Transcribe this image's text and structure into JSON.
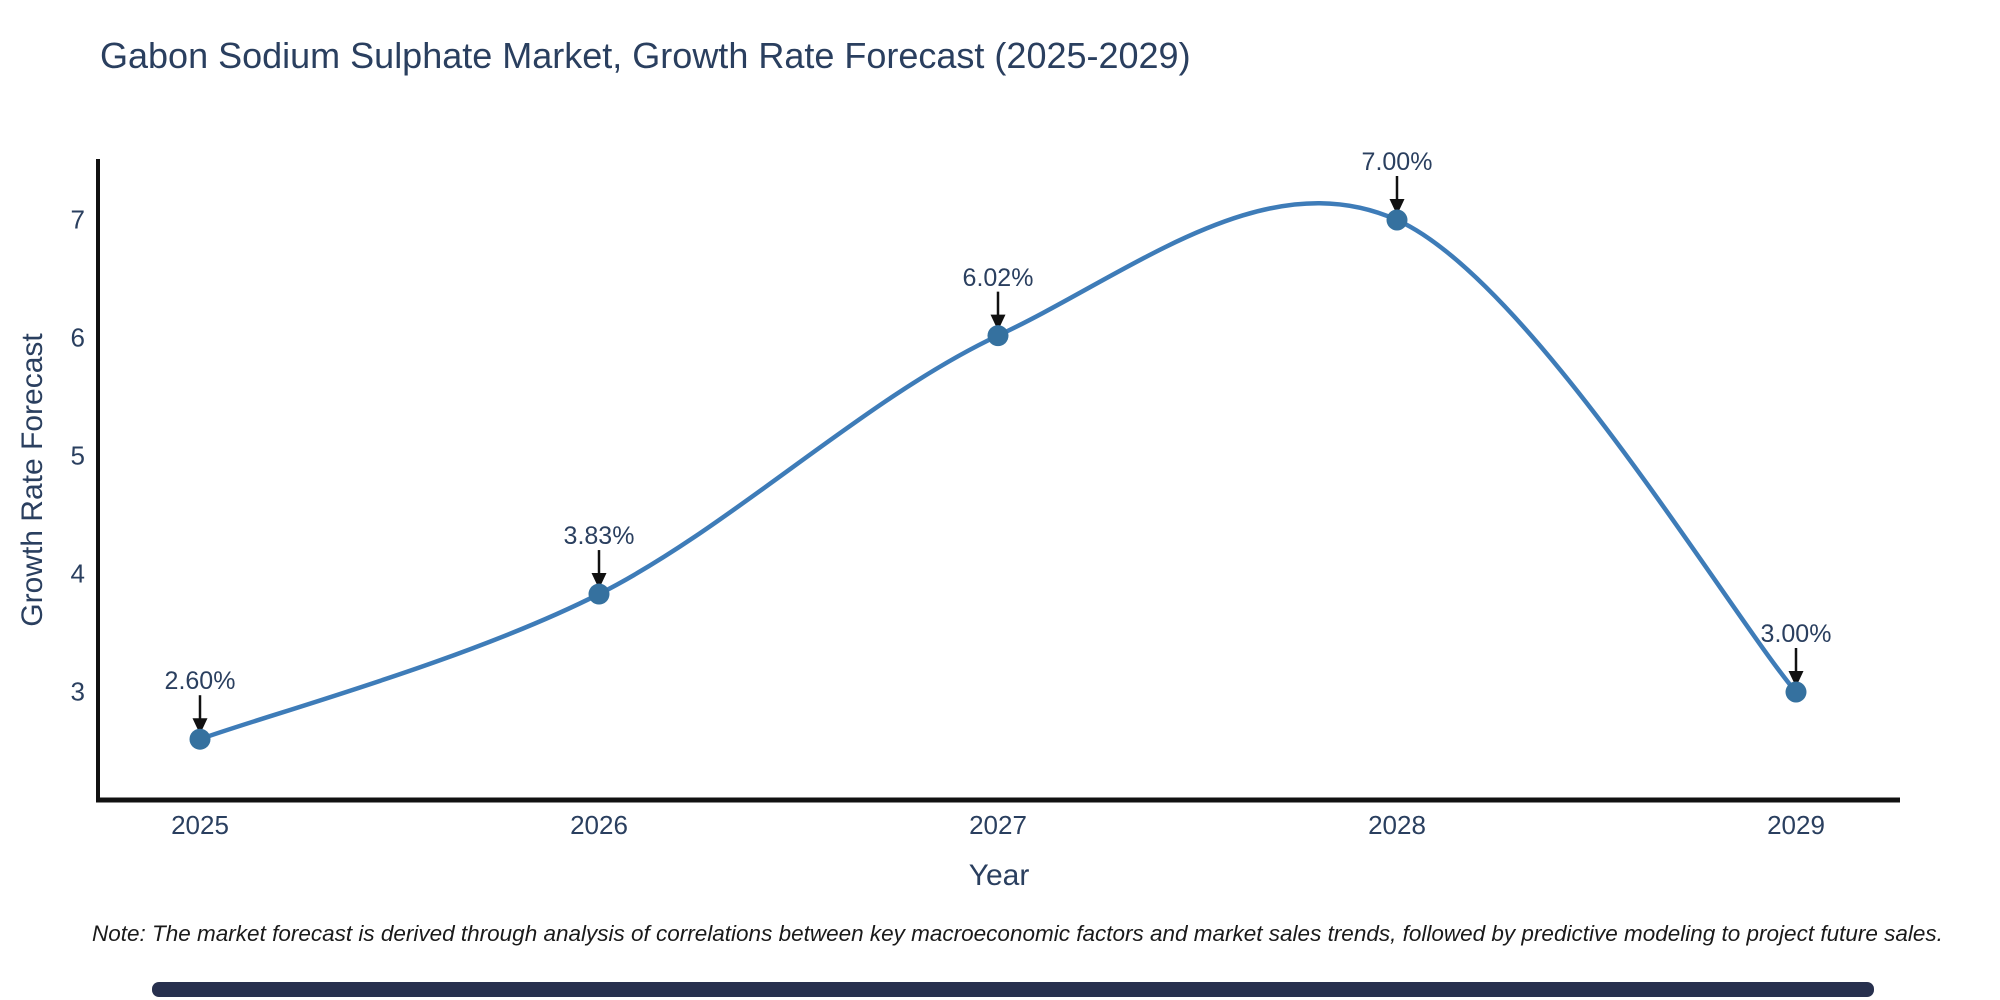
{
  "title": "Gabon Sodium Sulphate Market, Growth Rate Forecast (2025-2029)",
  "footnote": "Note: The market forecast is derived through analysis of correlations between key macroeconomic factors and market sales trends, followed by predictive modeling to project future sales.",
  "chart_data": {
    "type": "line",
    "title": "Gabon Sodium Sulphate Market, Growth Rate Forecast (2025-2029)",
    "x": [
      2025,
      2026,
      2027,
      2028,
      2029
    ],
    "values": [
      2.6,
      3.83,
      6.02,
      7.0,
      3.0
    ],
    "point_labels": [
      "2.60%",
      "3.83%",
      "6.02%",
      "7.00%",
      "3.00%"
    ],
    "xlabel": "Year",
    "ylabel": "Growth Rate Forecast",
    "xticks": [
      "2025",
      "2026",
      "2027",
      "2028",
      "2029"
    ],
    "yticks": [
      3,
      4,
      5,
      6,
      7
    ],
    "xlim": [
      2024.74,
      2029.26
    ],
    "ylim": [
      2.08,
      7.51
    ],
    "line_shape": "spline",
    "marker": "circle",
    "grid": false,
    "legend": false
  },
  "colors": {
    "line": "#3e7cb8",
    "marker": "#35719f",
    "axis": "#111111",
    "arrow": "#111111",
    "text": "#2a3f5f",
    "note_text": "#1a1a1a",
    "background": "#ffffff",
    "footer_bar": "#27304e"
  }
}
